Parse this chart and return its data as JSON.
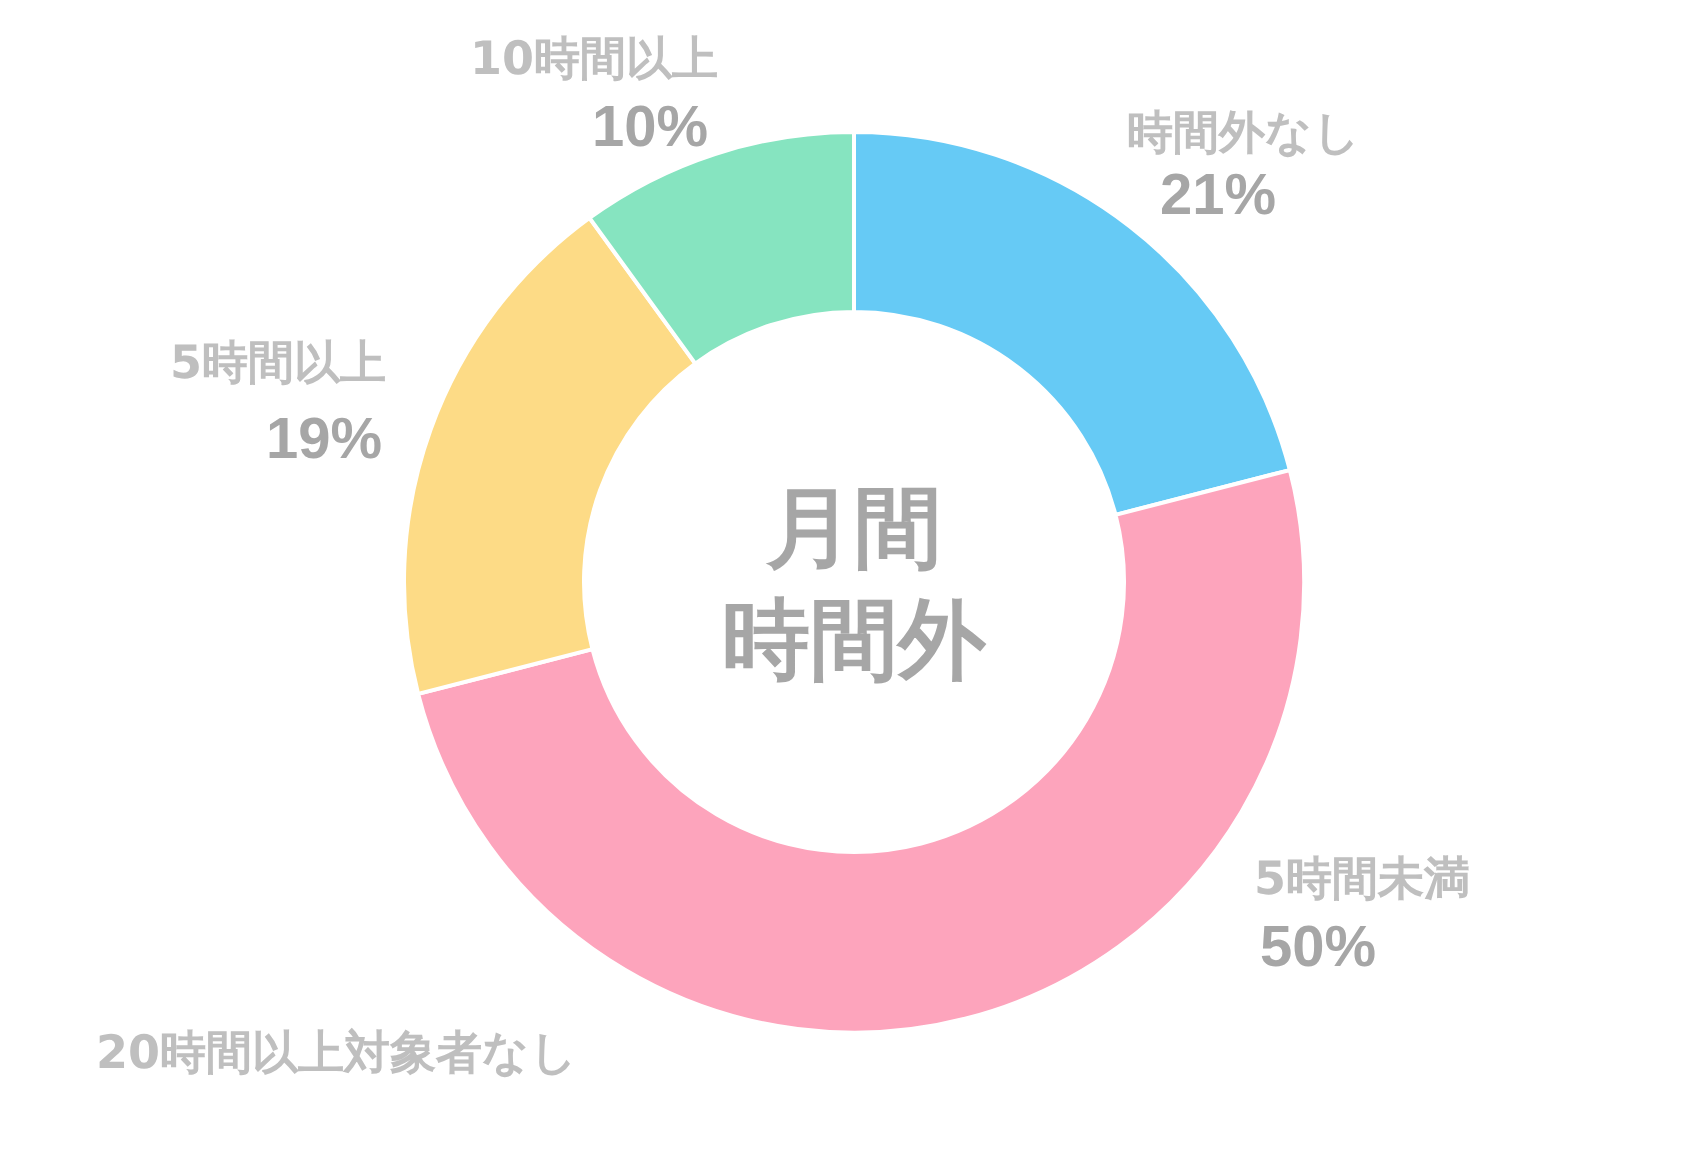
{
  "chart_data": {
    "type": "donut",
    "title": "月間時間外",
    "categories": [
      "時間外なし",
      "5時間未満",
      "5時間以上",
      "10時間以上"
    ],
    "values": [
      21,
      50,
      19,
      10
    ],
    "colors": [
      "#66caf5",
      "#fda4bc",
      "#fddb86",
      "#86e4c0"
    ],
    "value_labels": [
      "21%",
      "50%",
      "19%",
      "10%"
    ],
    "annotations": [
      "20時間以上対象者なし"
    ]
  }
}
